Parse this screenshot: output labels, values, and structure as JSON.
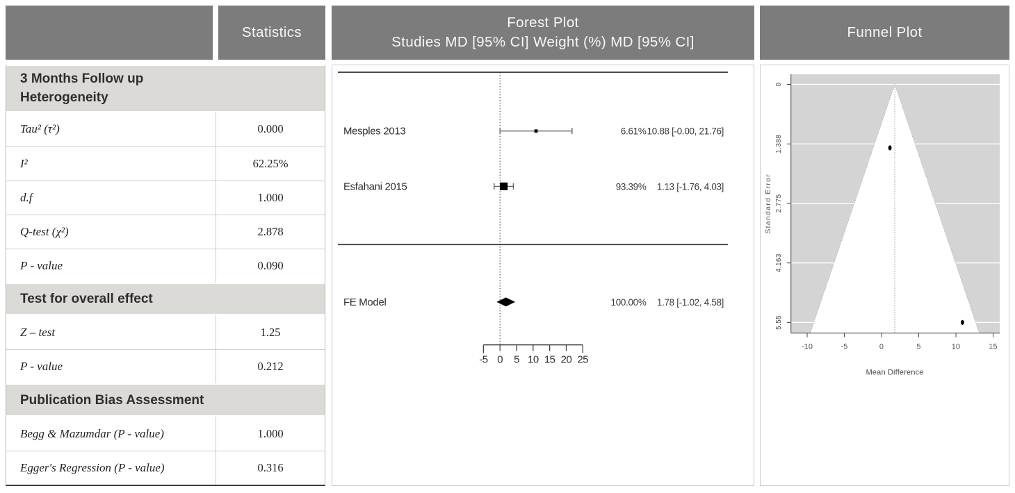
{
  "header": {
    "col1": "",
    "col2": "Statistics",
    "col3_line1": "Forest Plot",
    "col3_line2": "Studies MD [95% CI] Weight (%) MD [95% CI]",
    "col4": "Funnel Plot"
  },
  "stats_table": {
    "sections": [
      {
        "title_lines": [
          "3 Months Follow up",
          "Heterogeneity"
        ],
        "rows": [
          {
            "label": "Tau² (τ²)",
            "value": "0.000"
          },
          {
            "label": "I²",
            "value": "62.25%"
          },
          {
            "label": "d.f",
            "value": "1.000"
          },
          {
            "label": "Q-test (χ²)",
            "value": "2.878"
          },
          {
            "label": "P - value",
            "value": "0.090"
          }
        ]
      },
      {
        "title_lines": [
          "Test for overall effect"
        ],
        "rows": [
          {
            "label": "Z – test",
            "value": "1.25"
          },
          {
            "label": "P - value",
            "value": "0.212"
          }
        ]
      },
      {
        "title_lines": [
          "Publication Bias Assessment"
        ],
        "rows": [
          {
            "label": "Begg & Mazumdar (P - value)",
            "value": "1.000"
          },
          {
            "label": "Egger's Regression (P - value)",
            "value": "0.316"
          }
        ]
      }
    ]
  },
  "chart_data": [
    {
      "type": "forest",
      "title": "Forest Plot",
      "effect_measure": "MD",
      "ref_line_x": 0,
      "x_ticks": [
        -5,
        0,
        5,
        10,
        15,
        20,
        25
      ],
      "studies": [
        {
          "name": "Mesples 2013",
          "md": 10.88,
          "ci": [
            -0.0,
            21.76
          ],
          "weight_pct": 6.61,
          "weight_text": "6.61%",
          "estimate_text": "10.88 [-0.00, 21.76]"
        },
        {
          "name": "Esfahani 2015",
          "md": 1.13,
          "ci": [
            -1.76,
            4.03
          ],
          "weight_pct": 93.39,
          "weight_text": "93.39%",
          "estimate_text": "1.13 [-1.76, 4.03]"
        }
      ],
      "summary": {
        "name": "FE Model",
        "md": 1.78,
        "ci": [
          -1.02,
          4.58
        ],
        "weight_pct": 100.0,
        "weight_text": "100.00%",
        "estimate_text": "1.78 [-1.02, 4.58]"
      }
    },
    {
      "type": "funnel",
      "title": "Funnel Plot",
      "xlabel": "Mean Difference",
      "ylabel": "Standard Error",
      "x_ticks": [
        -10,
        -5,
        0,
        5,
        10,
        15
      ],
      "y_ticks": [
        0,
        1.388,
        2.775,
        4.163,
        5.55
      ],
      "y_tick_labels": [
        "0",
        "1.388",
        "2.775",
        "4.163",
        "5.55"
      ],
      "xlim": [
        -12.2,
        15.9
      ],
      "ylim": [
        -0.22,
        5.8
      ],
      "center_x": 1.78,
      "ci_slope": 1.96,
      "points": [
        {
          "x": 1.13,
          "se": 1.48
        },
        {
          "x": 10.88,
          "se": 5.55
        }
      ],
      "colors": {
        "plot_bg": "#d4d4d4",
        "funnel_fill": "#ffffff",
        "gridline": "#ffffff"
      }
    }
  ],
  "colors": {
    "header_bg": "#7c7c7c",
    "header_text": "#f7f7f7",
    "section_bg": "#dcdad6",
    "section_text": "#2e2e2e"
  }
}
